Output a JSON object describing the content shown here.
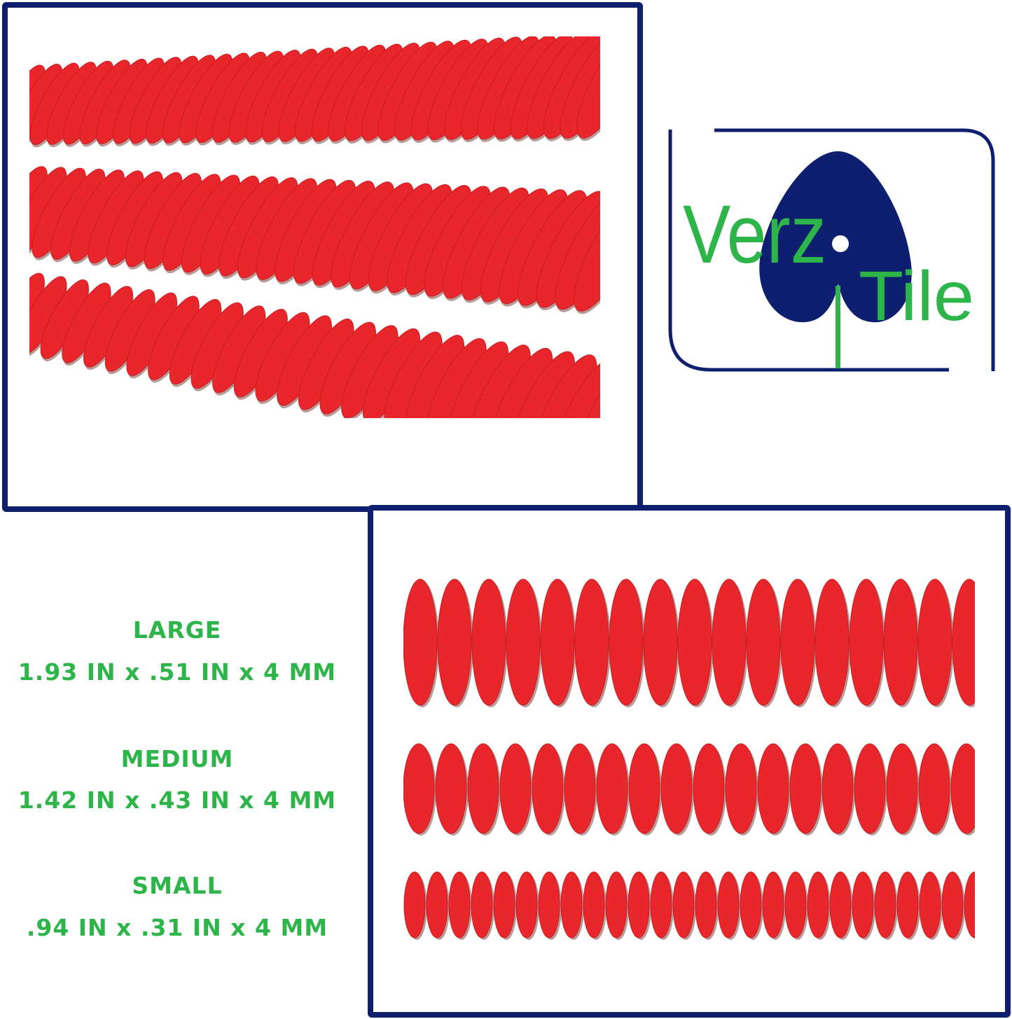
{
  "brand": {
    "logo_text_1": "Verz",
    "logo_text_2": "Tile",
    "navy": "#0d1f6e",
    "green": "#2db54a"
  },
  "tile_color": "#e8262b",
  "sizes": [
    {
      "label": "LARGE",
      "dimensions": "1.93 IN x .51 IN x 4 MM"
    },
    {
      "label": "MEDIUM",
      "dimensions": "1.42 IN x .43 IN x 4 MM"
    },
    {
      "label": "SMALL",
      "dimensions": ".94 IN x .31 IN x 4 MM"
    }
  ]
}
